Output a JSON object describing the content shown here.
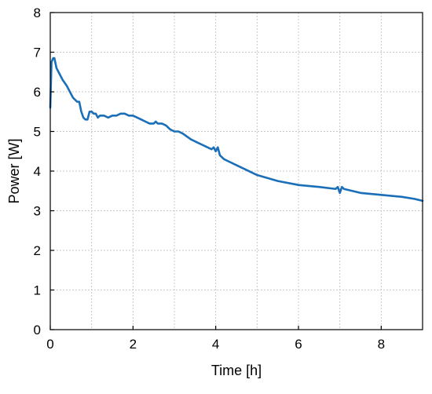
{
  "chart_data": {
    "type": "line",
    "title": "",
    "xlabel": "Time [h]",
    "ylabel": "Power [W]",
    "xlim": [
      0,
      9
    ],
    "ylim": [
      0,
      8
    ],
    "x_ticks": [
      0,
      2,
      4,
      6,
      8
    ],
    "x_tick_labels": [
      "0",
      "2",
      "4",
      "6",
      "8"
    ],
    "y_ticks": [
      0,
      1,
      2,
      3,
      4,
      5,
      6,
      7,
      8
    ],
    "y_tick_labels": [
      "0",
      "1",
      "2",
      "3",
      "4",
      "5",
      "6",
      "7",
      "8"
    ],
    "grid": true,
    "legend": "none",
    "series": [
      {
        "color": "#1a6fb8",
        "x": [
          0,
          0.03,
          0.07,
          0.1,
          0.15,
          0.2,
          0.3,
          0.4,
          0.5,
          0.55,
          0.6,
          0.65,
          0.7,
          0.75,
          0.8,
          0.85,
          0.9,
          0.95,
          1.0,
          1.05,
          1.1,
          1.15,
          1.2,
          1.3,
          1.4,
          1.5,
          1.6,
          1.7,
          1.8,
          1.9,
          2.0,
          2.1,
          2.2,
          2.3,
          2.4,
          2.5,
          2.55,
          2.6,
          2.7,
          2.8,
          2.9,
          3.0,
          3.1,
          3.2,
          3.4,
          3.6,
          3.8,
          3.9,
          3.95,
          4.0,
          4.05,
          4.1,
          4.2,
          4.3,
          4.5,
          4.7,
          5.0,
          5.5,
          6.0,
          6.5,
          6.9,
          6.95,
          7.0,
          7.05,
          7.1,
          7.5,
          8.0,
          8.5,
          8.8,
          9.0
        ],
        "y": [
          5.6,
          6.75,
          6.85,
          6.85,
          6.6,
          6.5,
          6.3,
          6.15,
          5.95,
          5.85,
          5.8,
          5.75,
          5.75,
          5.5,
          5.35,
          5.3,
          5.3,
          5.5,
          5.5,
          5.45,
          5.45,
          5.35,
          5.4,
          5.4,
          5.35,
          5.4,
          5.4,
          5.45,
          5.45,
          5.4,
          5.4,
          5.35,
          5.3,
          5.25,
          5.2,
          5.2,
          5.25,
          5.2,
          5.2,
          5.15,
          5.05,
          5.0,
          5.0,
          4.95,
          4.8,
          4.7,
          4.6,
          4.55,
          4.6,
          4.5,
          4.6,
          4.4,
          4.3,
          4.25,
          4.15,
          4.05,
          3.9,
          3.75,
          3.65,
          3.6,
          3.55,
          3.6,
          3.45,
          3.6,
          3.55,
          3.45,
          3.4,
          3.35,
          3.3,
          3.25
        ]
      }
    ]
  }
}
